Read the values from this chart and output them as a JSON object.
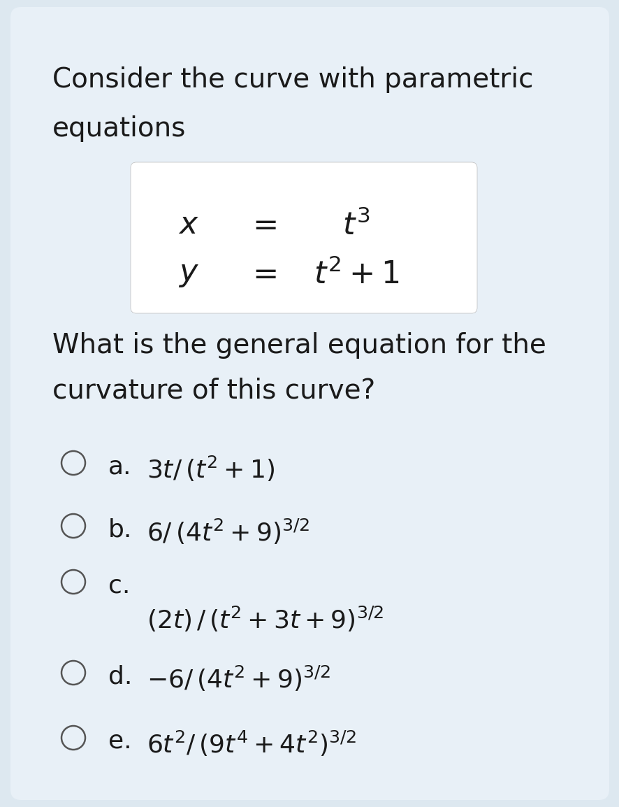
{
  "background_color": "#dde8f0",
  "card_color": "#e8f0f7",
  "text_color": "#1a1a1a",
  "eq_box_color": "#ffffff",
  "title_line1": "Consider the curve with parametric",
  "title_line2": "equations",
  "question_line1": "What is the general equation for the",
  "question_line2": "curvature of this curve?",
  "option_labels": [
    "a.",
    "b.",
    "c.",
    "d.",
    "e."
  ],
  "option_maths": [
    "3t/ (t² + 1)",
    "6/(4t² + 9)³ᐟ²",
    "(2t) /(t² + 3t + 9)³ᐟ²",
    "−6/(4t² + 9)³ᐟ²",
    "6t²/(9t⁴ + 4t²)³ᐟ²"
  ],
  "title_fontsize": 28,
  "question_fontsize": 28,
  "eq_fontsize": 32,
  "option_fontsize": 26,
  "label_fontsize": 26
}
